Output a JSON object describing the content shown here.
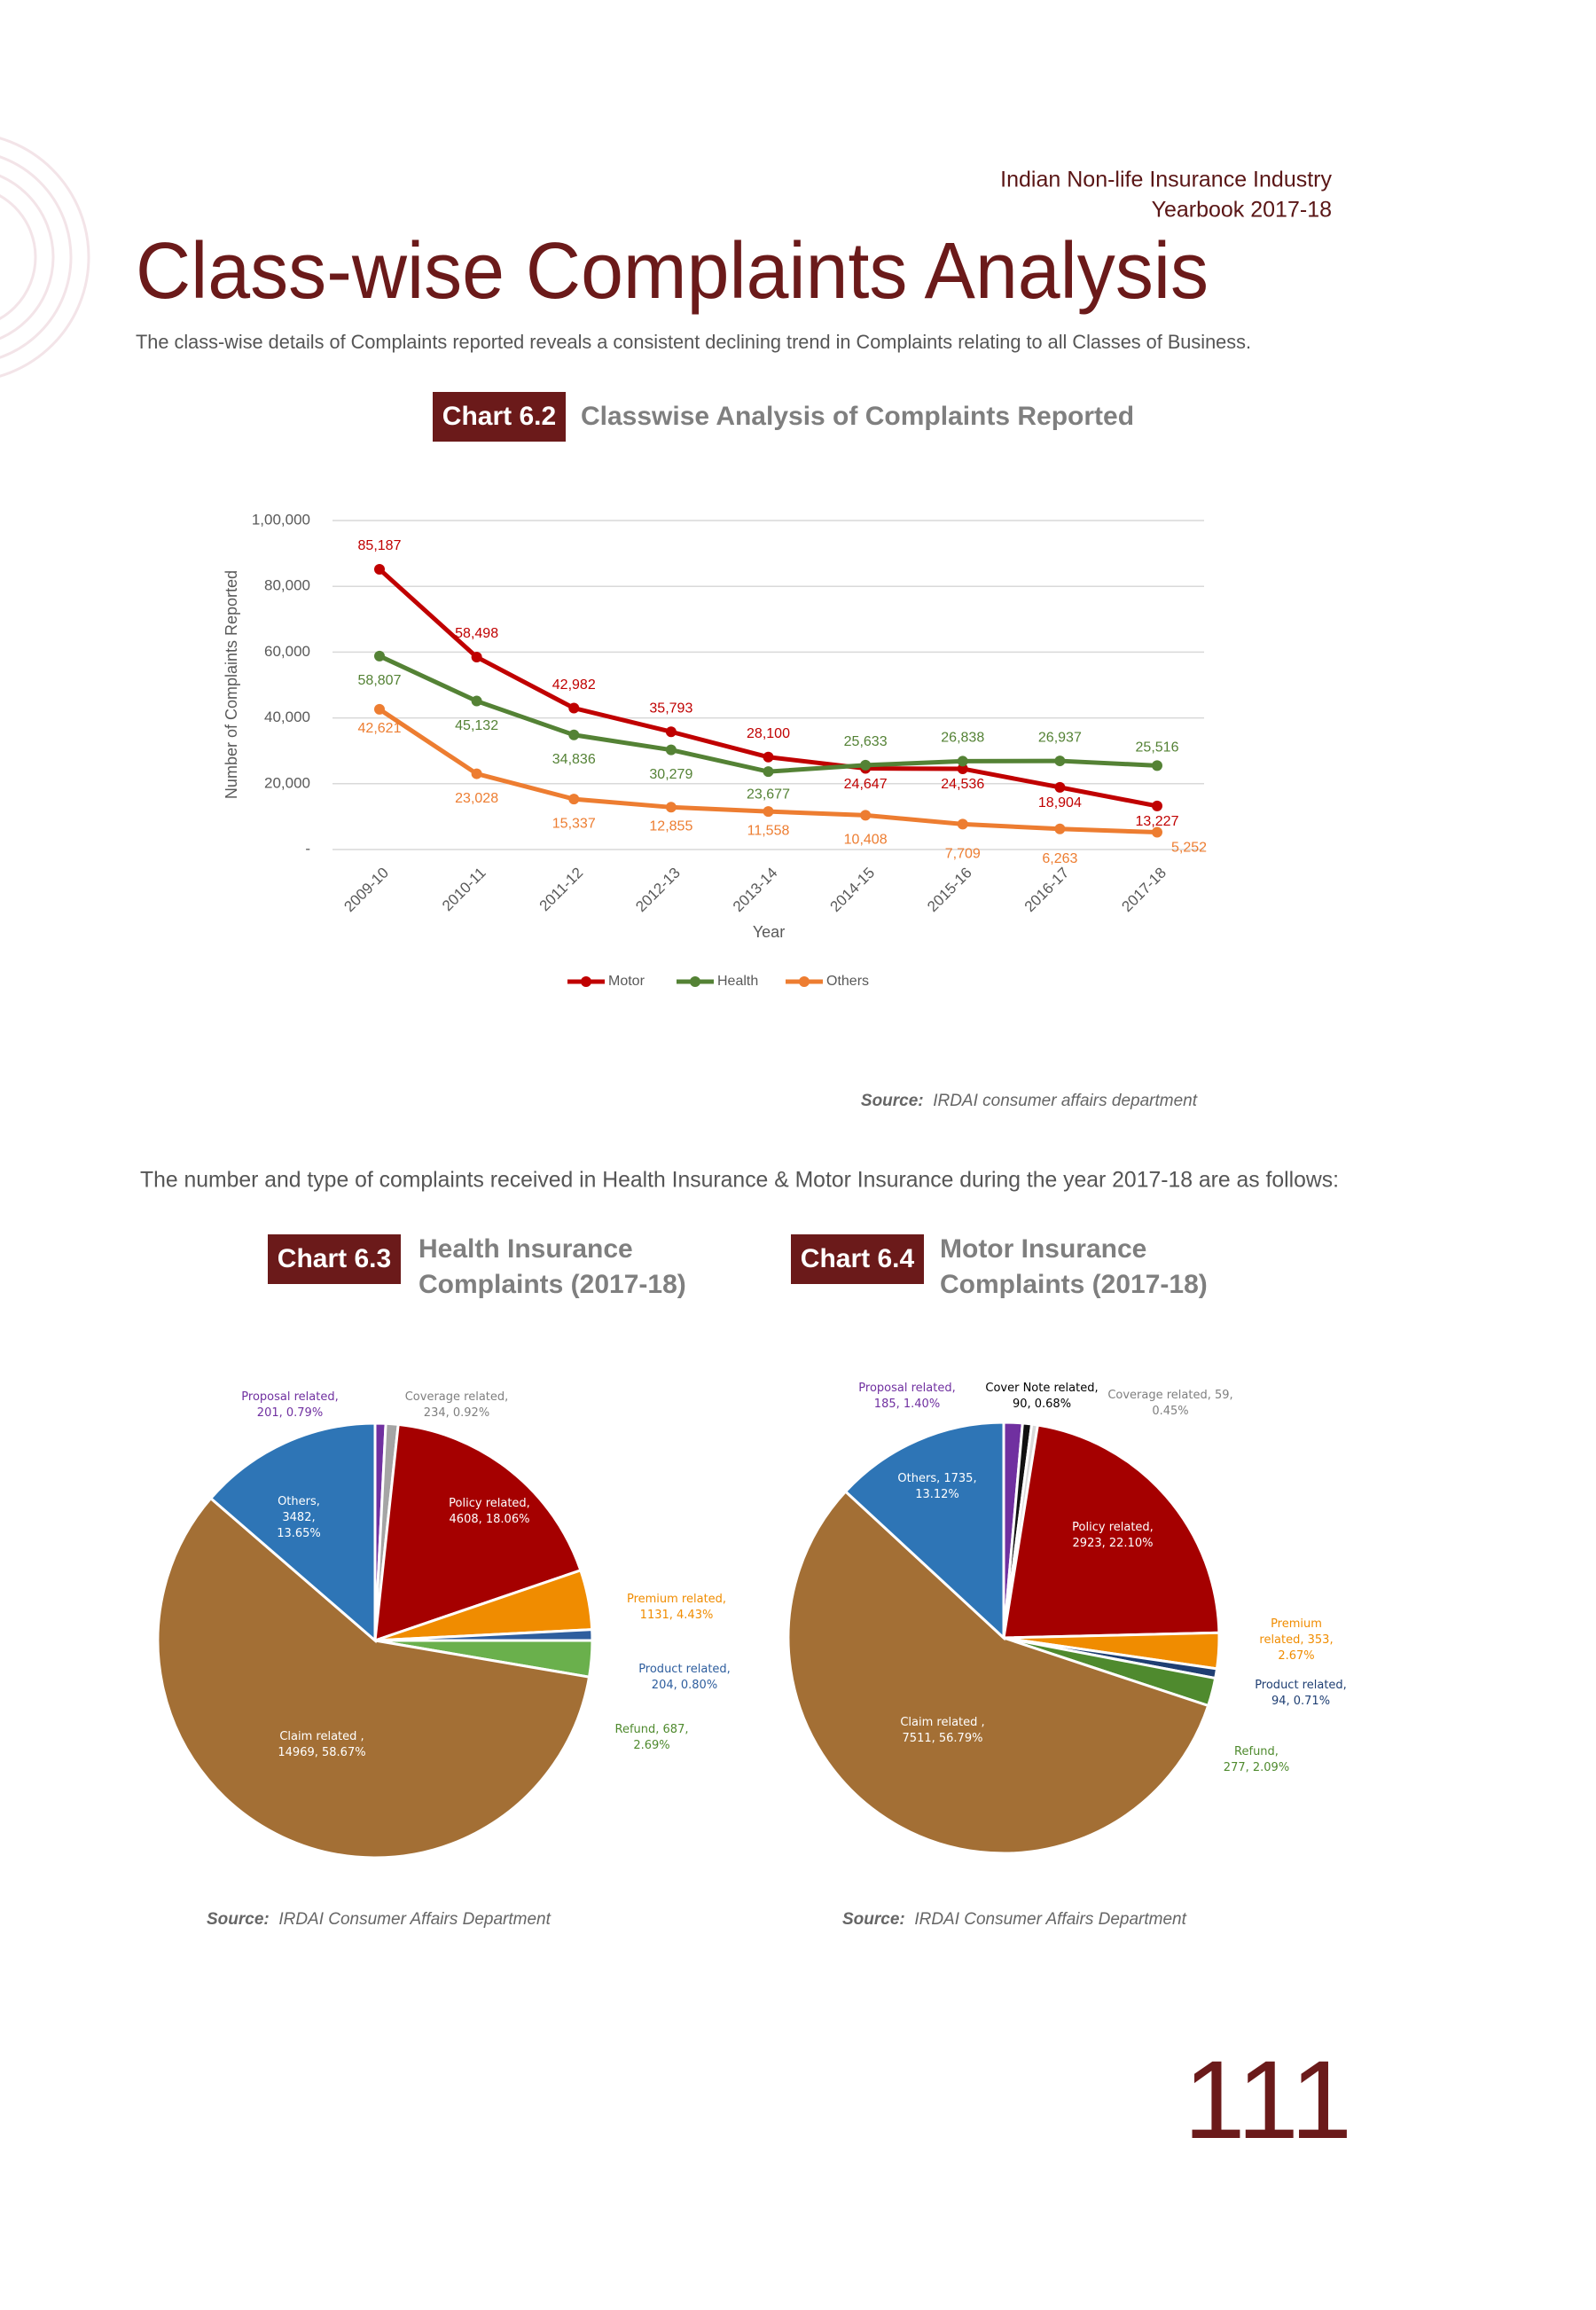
{
  "header": {
    "line1": "Indian Non-life Insurance Industry",
    "line2": "Yearbook 2017-18"
  },
  "title": "Class-wise Complaints Analysis",
  "intro": "The class-wise details of Complaints reported reveals a consistent declining trend in Complaints relating to all Classes of Business.",
  "between_text": "The number and type of complaints received in Health Insurance & Motor Insurance during the year 2017-18 are as follows:",
  "page_number": "111",
  "chart_data": [
    {
      "type": "line",
      "label": "Chart 6.2",
      "title": "Classwise Analysis of Complaints Reported",
      "x_label": "Year",
      "y_label": "Number of Complaints Reported",
      "categories": [
        "2009-10",
        "2010-11",
        "2011-12",
        "2012-13",
        "2013-14",
        "2014-15",
        "2015-16",
        "2016-17",
        "2017-18"
      ],
      "ylim": [
        0,
        100000
      ],
      "yticks": [
        {
          "value": 0,
          "label": "-"
        },
        {
          "value": 20000,
          "label": "20,000"
        },
        {
          "value": 40000,
          "label": "40,000"
        },
        {
          "value": 60000,
          "label": "60,000"
        },
        {
          "value": 80000,
          "label": "80,000"
        },
        {
          "value": 100000,
          "label": "1,00,000"
        }
      ],
      "grid": true,
      "legend": "bottom",
      "series": [
        {
          "name": "Motor",
          "color": "#c00000",
          "values": [
            85187,
            58498,
            42982,
            35793,
            28100,
            24647,
            24536,
            18904,
            13227
          ],
          "value_labels": [
            "85,187",
            "58,498",
            "42,982",
            "35,793",
            "28,100",
            "24,647",
            "24,536",
            "18,904",
            "13,227"
          ]
        },
        {
          "name": "Health",
          "color": "#548235",
          "values": [
            58807,
            45132,
            34836,
            30279,
            23677,
            25633,
            26838,
            26937,
            25516
          ],
          "value_labels": [
            "58,807",
            "45,132",
            "34,836",
            "30,279",
            "23,677",
            "25,633",
            "26,838",
            "26,937",
            "25,516"
          ]
        },
        {
          "name": "Others",
          "color": "#ed7d31",
          "values": [
            42621,
            23028,
            15337,
            12855,
            11558,
            10408,
            7709,
            6263,
            5252
          ],
          "value_labels": [
            "42,621",
            "23,028",
            "15,337",
            "12,855",
            "11,558",
            "10,408",
            "7,709",
            "6,263",
            "5,252"
          ]
        }
      ],
      "source": {
        "label": "Source:",
        "text": "IRDAI consumer affairs department"
      }
    },
    {
      "type": "pie",
      "label": "Chart 6.3",
      "title": [
        "Health Insurance",
        "Complaints (2017-18)"
      ],
      "values": [
        201,
        234,
        4608,
        1131,
        204,
        687,
        14969,
        3482
      ],
      "value_labels": [
        "Proposal related, 201, 0.79%",
        "Coverage related, 234, 0.92%",
        "Policy related, 4608, 18.06%",
        "Premium related, 1131, 4.43%",
        "Product related, 204, 0.80%",
        "Refund, 687, 2.69%",
        "Claim related , 14969, 58.67%",
        "Others, 3482, 13.65%"
      ],
      "colors": [
        "#7030a0",
        "#a5a5a5",
        "#a50000",
        "#f08c00",
        "#2e5e9e",
        "#6ab04c",
        "#a36f35",
        "#2e75b6"
      ],
      "source": {
        "label": "Source:",
        "text": "IRDAI Consumer Affairs Department"
      }
    },
    {
      "type": "pie",
      "label": "Chart 6.4",
      "title": [
        "Motor Insurance",
        "Complaints (2017-18)"
      ],
      "values": [
        185,
        90,
        59,
        2923,
        353,
        94,
        277,
        7511,
        1735
      ],
      "value_labels": [
        "Proposal related, 185, 1.40%",
        "Cover Note related, 90, 0.68%",
        "Coverage related, 59, 0.45%",
        "Policy related, 2923, 22.10%",
        "Premium related, 353, 2.67%",
        "Product related, 94, 0.71%",
        "Refund, 277, 2.09%",
        "Claim related , 7511, 56.79%",
        "Others, 1735, 13.12%"
      ],
      "colors": [
        "#7030a0",
        "#111111",
        "#d9d9d9",
        "#a50000",
        "#f08c00",
        "#1f3f73",
        "#4f8a2e",
        "#a36f35",
        "#2e75b6"
      ],
      "source": {
        "label": "Source:",
        "text": "IRDAI Consumer Affairs Department"
      }
    }
  ]
}
